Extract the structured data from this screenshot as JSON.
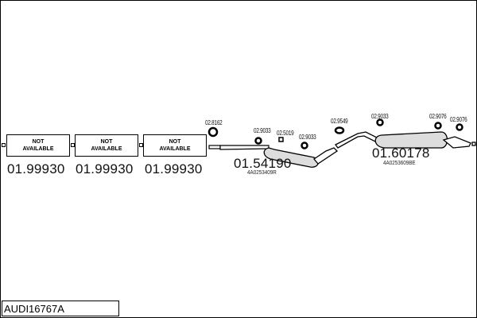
{
  "title": "AUDI16767A",
  "unavailable_parts": [
    {
      "text_line1": "NOT",
      "text_line2": "AVAILABLE",
      "number": "01.99930"
    },
    {
      "text_line1": "NOT",
      "text_line2": "AVAILABLE",
      "number": "01.99930"
    },
    {
      "text_line1": "NOT",
      "text_line2": "AVAILABLE",
      "number": "01.99930"
    }
  ],
  "parts": [
    {
      "number": "01.54190",
      "reference": "4A0253409R"
    },
    {
      "number": "01.60178",
      "reference": "4A0253609BE"
    }
  ],
  "fittings": [
    "02.8162",
    "02.9033",
    "02.5019",
    "02.9033",
    "02.9549",
    "02.9033",
    "02.9076",
    "02.9076"
  ]
}
